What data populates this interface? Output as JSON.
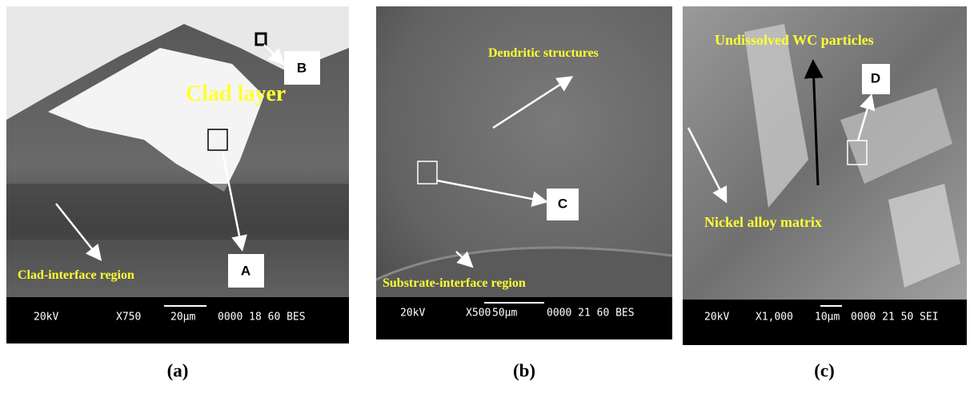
{
  "panels": [
    {
      "caption": "(a)",
      "annotations": [
        "Clad layer",
        "Clad-interface region"
      ],
      "markers": [
        "A",
        "B"
      ],
      "info_bar": {
        "voltage": "20kV",
        "magnification": "X750",
        "scale": "20µm",
        "code": "0000 18 60 BES"
      }
    },
    {
      "caption": "(b)",
      "annotations": [
        "Dendritic structures",
        "Substrate-interface region"
      ],
      "markers": [
        "C"
      ],
      "info_bar": {
        "voltage": "20kV",
        "magnification": "X500",
        "scale": "50µm",
        "code": "0000 21 60 BES"
      }
    },
    {
      "caption": "(c)",
      "annotations": [
        "Undissolved WC particles",
        "Nickel alloy matrix"
      ],
      "markers": [
        "D"
      ],
      "info_bar": {
        "voltage": "20kV",
        "magnification": "X1,000",
        "scale": "10µm",
        "code": "0000 21 50 SEI"
      }
    }
  ]
}
